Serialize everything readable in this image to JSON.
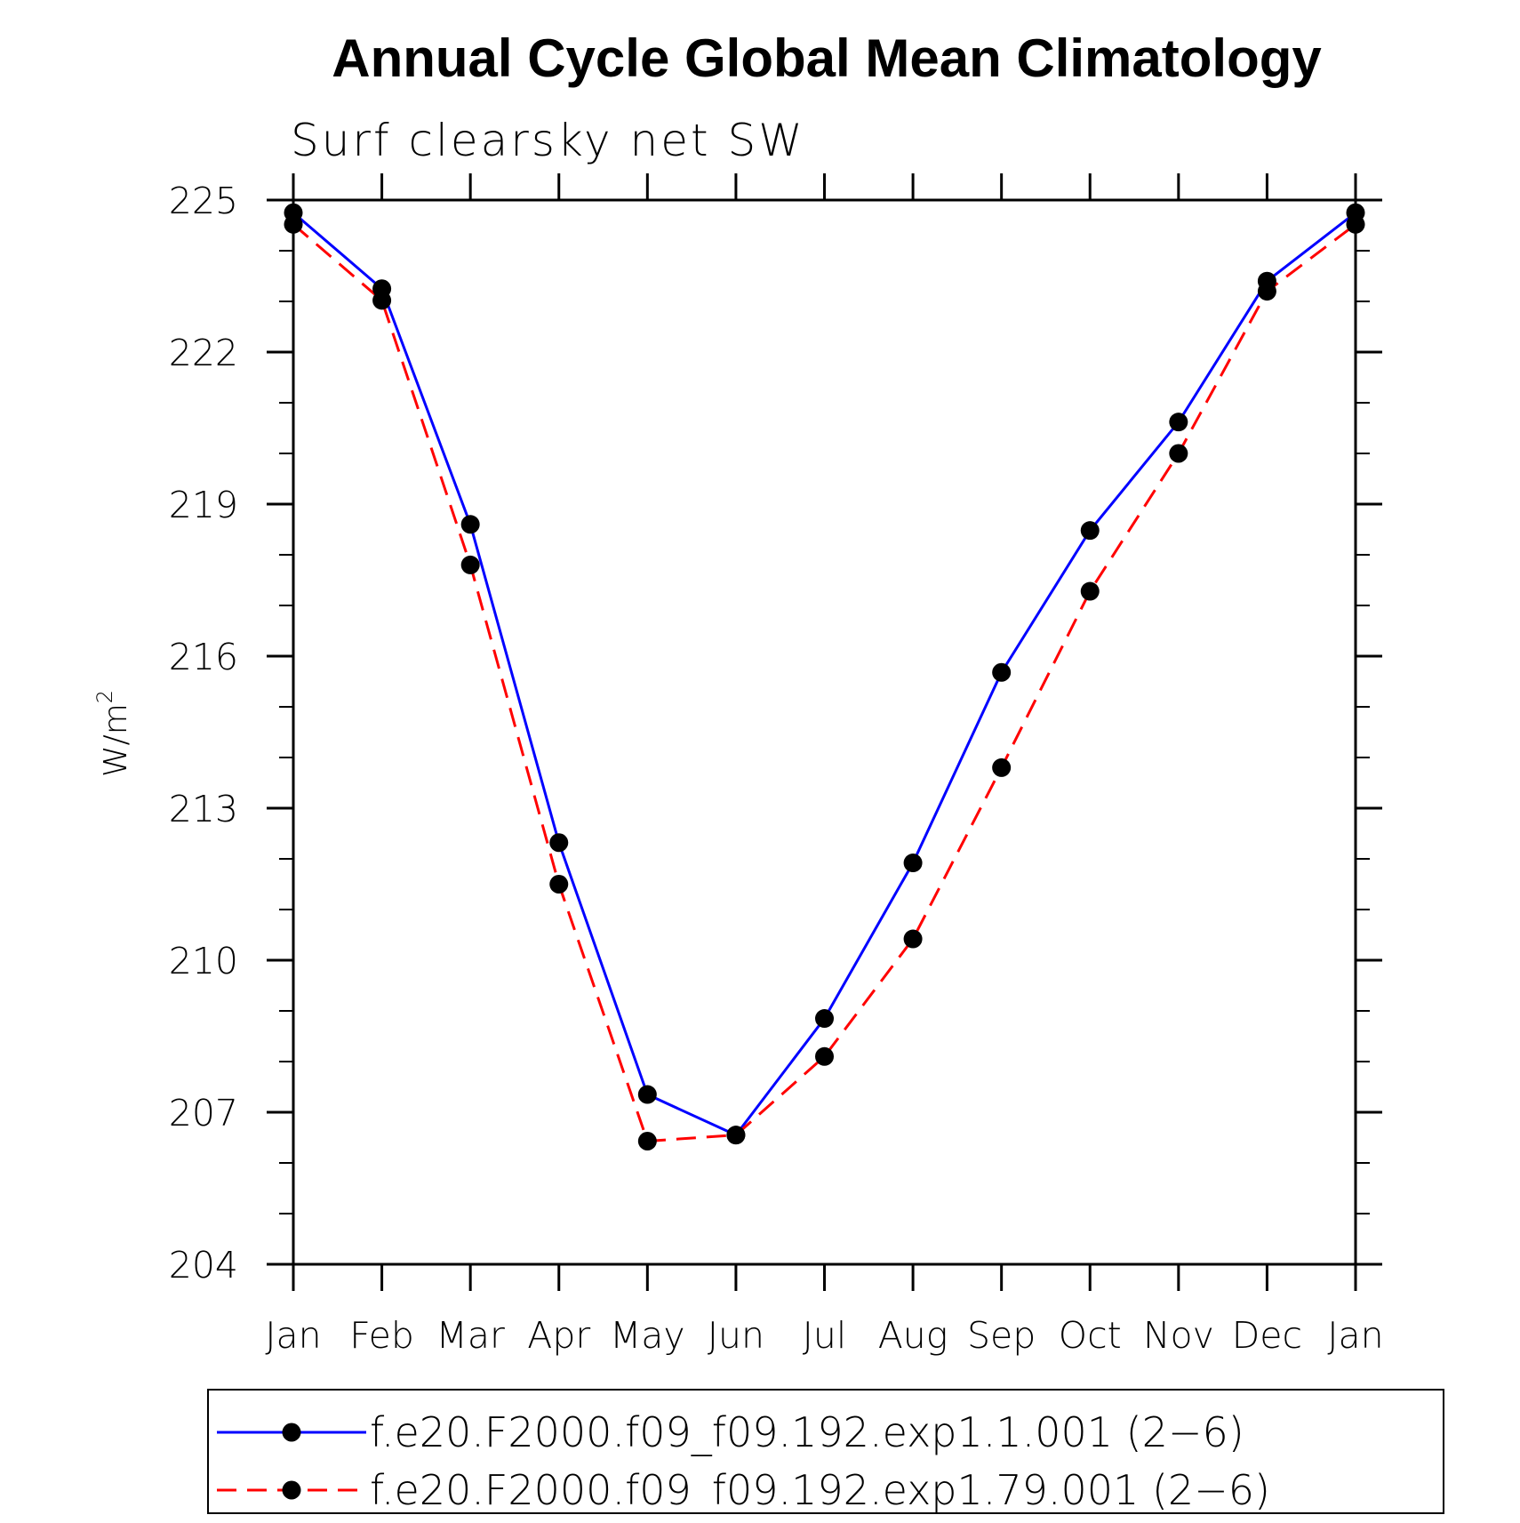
{
  "chart_data": {
    "type": "line",
    "title": "Annual Cycle Global Mean Climatology",
    "subtitle": "Surf clearsky net SW",
    "xlabel": "",
    "ylabel": "W/m",
    "ylabel_sup": "2",
    "categories": [
      "Jan",
      "Feb",
      "Mar",
      "Apr",
      "May",
      "Jun",
      "Jul",
      "Aug",
      "Sep",
      "Oct",
      "Nov",
      "Dec",
      "Jan"
    ],
    "yticks": [
      204,
      207,
      210,
      213,
      216,
      219,
      222,
      225
    ],
    "ylim": [
      204,
      225
    ],
    "grid": false,
    "legend_position": "bottom",
    "series": [
      {
        "name": "f.e20.F2000.f09_f09.192.exp1.1.001 (2−6)",
        "color": "#0000ff",
        "line_style": "solid",
        "marker": "filled-circle",
        "values": [
          224.75,
          223.25,
          218.6,
          212.32,
          207.35,
          206.55,
          208.85,
          211.92,
          215.68,
          218.48,
          220.62,
          223.4,
          224.75
        ]
      },
      {
        "name": "f.e20.F2000.f09_f09.192.exp1.79.001 (2−6)",
        "color": "#ff0000",
        "line_style": "dashed",
        "marker": "filled-circle",
        "values": [
          224.52,
          223.02,
          217.8,
          211.5,
          206.43,
          206.55,
          208.1,
          210.42,
          213.8,
          217.28,
          220.0,
          223.2,
          224.52
        ]
      }
    ]
  }
}
